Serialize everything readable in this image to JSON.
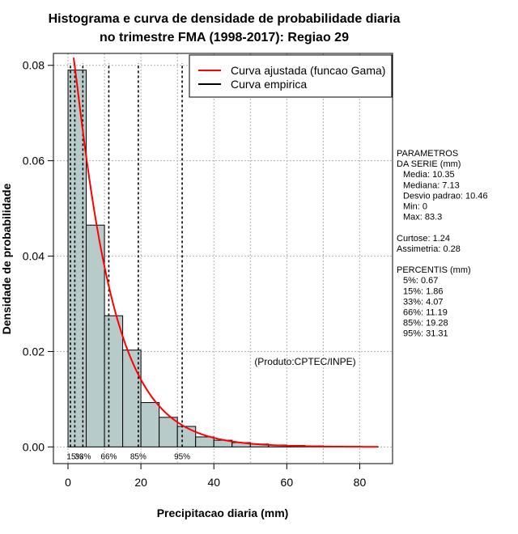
{
  "chart_data": {
    "type": "bar",
    "title_lines": [
      "Histograma e curva de densidade de probabilidade diaria",
      "no trimestre FMA (1998-2017): Regiao 29"
    ],
    "xlabel": "Precipitacao diaria (mm)",
    "ylabel": "Densidade de probabilidade",
    "xlim": [
      -4,
      89
    ],
    "ylim": [
      -0.0035,
      0.0825
    ],
    "x_ticks": [
      0,
      20,
      40,
      60,
      80
    ],
    "x_tick_labels": [
      "0",
      "20",
      "40",
      "60",
      "80"
    ],
    "y_ticks": [
      0.0,
      0.02,
      0.04,
      0.06,
      0.08
    ],
    "y_tick_labels": [
      "0.00",
      "0.02",
      "0.04",
      "0.06",
      "0.08"
    ],
    "grid": true,
    "bins": [
      {
        "x0": 0,
        "x1": 5,
        "density": 0.079
      },
      {
        "x0": 5,
        "x1": 10,
        "density": 0.0465
      },
      {
        "x0": 10,
        "x1": 15,
        "density": 0.0275
      },
      {
        "x0": 15,
        "x1": 20,
        "density": 0.0203
      },
      {
        "x0": 20,
        "x1": 25,
        "density": 0.0093
      },
      {
        "x0": 25,
        "x1": 30,
        "density": 0.0062
      },
      {
        "x0": 30,
        "x1": 35,
        "density": 0.0043
      },
      {
        "x0": 35,
        "x1": 40,
        "density": 0.0021
      },
      {
        "x0": 40,
        "x1": 45,
        "density": 0.0014
      },
      {
        "x0": 45,
        "x1": 50,
        "density": 0.0009
      },
      {
        "x0": 50,
        "x1": 55,
        "density": 0.0006
      },
      {
        "x0": 55,
        "x1": 60,
        "density": 0.0004
      },
      {
        "x0": 60,
        "x1": 65,
        "density": 0.0003
      },
      {
        "x0": 65,
        "x1": 70,
        "density": 0.0002
      },
      {
        "x0": 70,
        "x1": 75,
        "density": 0.0001
      },
      {
        "x0": 75,
        "x1": 80,
        "density": 8e-05
      },
      {
        "x0": 80,
        "x1": 85,
        "density": 6e-05
      }
    ],
    "series": [
      {
        "name": "Curva ajustada (funcao Gama)",
        "color": "#ff0000",
        "shape": 1.05,
        "scale": 9.8,
        "x_range": [
          0.3,
          85
        ]
      },
      {
        "name": "Curva empirica",
        "color": "#000000"
      }
    ],
    "legend": {
      "position": "top-right",
      "entries": [
        "Curva ajustada (funcao Gama)",
        "Curva empirica"
      ]
    },
    "percentile_lines": [
      {
        "label": "5%",
        "x": 0.67,
        "drawn_label": ""
      },
      {
        "label": "15%",
        "x": 1.86,
        "drawn_label": "15%"
      },
      {
        "label": "33%",
        "x": 4.07,
        "drawn_label": "33%"
      },
      {
        "label": "66%",
        "x": 11.19,
        "drawn_label": "66%"
      },
      {
        "label": "85%",
        "x": 19.28,
        "drawn_label": "85%"
      },
      {
        "label": "95%",
        "x": 31.31,
        "drawn_label": "95%"
      }
    ],
    "annotation": "(Produto:CPTEC/INPE)"
  },
  "colors": {
    "bar_fill": "#b7cbca",
    "bar_stroke": "#000000",
    "fit_curve": "#ff0000",
    "grid": "#b0b0b0"
  },
  "side_panel": {
    "lines": [
      "PARAMETROS",
      "DA SERIE (mm)",
      "  Media: 10.35",
      "  Mediana: 7.13",
      "  Desvio padrao: 10.46",
      "  Min: 0",
      "  Max: 83.3",
      "",
      "Curtose: 1.24",
      "Assimetria: 0.28",
      "",
      "PERCENTIS (mm)",
      "  5%: 0.67",
      "  15%: 1.86",
      "  33%: 4.07",
      "  66%: 11.19",
      "  85%: 19.28",
      "  95%: 31.31"
    ]
  }
}
